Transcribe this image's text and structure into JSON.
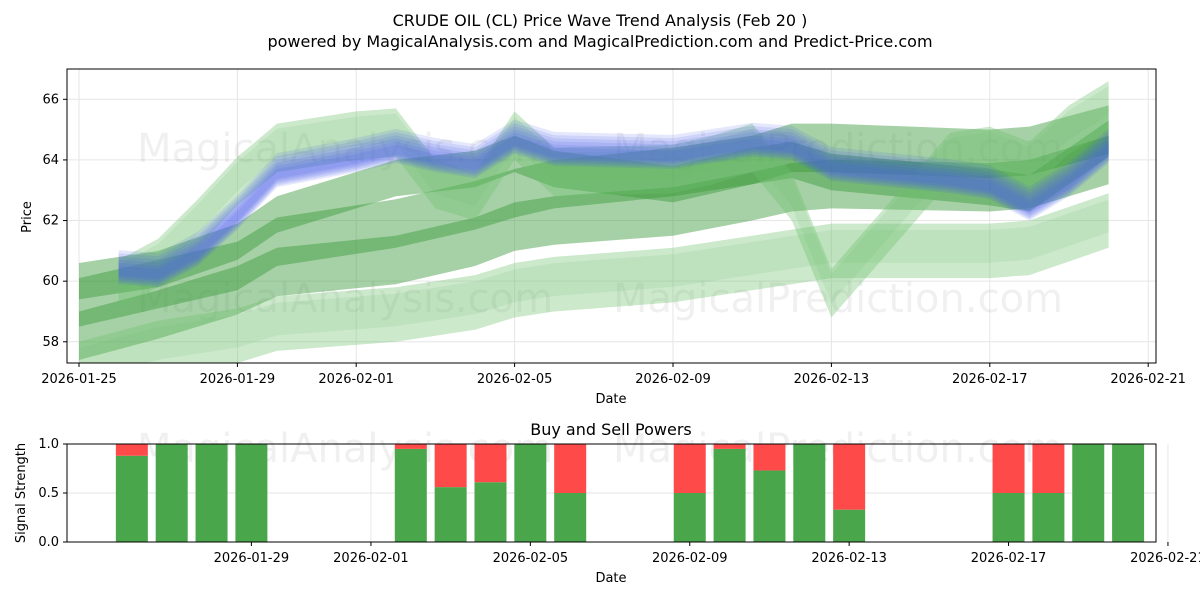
{
  "title_line1": "CRUDE OIL (CL) Price Wave Trend Analysis (Feb 20 )",
  "title_line2": "powered by MagicalAnalysis.com and MagicalPrediction.com and Predict-Price.com",
  "watermarks": [
    "MagicalAnalysis.com",
    "MagicalPrediction.com"
  ],
  "colors": {
    "blue_band": "#4a5ae8",
    "green_band": "#3a9a3a",
    "light_green_band": "#6cbf6c",
    "buy_bar": "#4aa64a",
    "sell_bar": "#ff4a4a"
  },
  "chart_data": [
    {
      "type": "area",
      "name": "price-wave-chart",
      "title": "",
      "xlabel": "Date",
      "ylabel": "Price",
      "x_range": [
        "2026-01-25",
        "2026-02-21"
      ],
      "ylim": [
        57.3,
        67.0
      ],
      "x_ticks": [
        "2026-01-25",
        "2026-01-29",
        "2026-02-01",
        "2026-02-05",
        "2026-02-09",
        "2026-02-13",
        "2026-02-17",
        "2026-02-21"
      ],
      "y_ticks": [
        58,
        60,
        62,
        64,
        66
      ],
      "grid": true,
      "series": [
        {
          "name": "blue-wave",
          "color": "blue",
          "width": 0.6,
          "copies": 6,
          "x": [
            "2026-01-26",
            "2026-01-27",
            "2026-01-28",
            "2026-01-29",
            "2026-01-30",
            "2026-02-01",
            "2026-02-02",
            "2026-02-03",
            "2026-02-04",
            "2026-02-05",
            "2026-02-06",
            "2026-02-09",
            "2026-02-10",
            "2026-02-11",
            "2026-02-12",
            "2026-02-13",
            "2026-02-16",
            "2026-02-17",
            "2026-02-18",
            "2026-02-19",
            "2026-02-20"
          ],
          "y": [
            60.4,
            60.3,
            61.0,
            62.2,
            63.6,
            64.1,
            64.4,
            64.1,
            63.9,
            64.7,
            64.3,
            64.2,
            64.4,
            64.6,
            64.5,
            63.8,
            63.4,
            63.2,
            62.5,
            63.3,
            64.4
          ]
        },
        {
          "name": "green-wave-upper",
          "color": "green",
          "width": 1.2,
          "x": [
            "2026-01-25",
            "2026-01-27",
            "2026-01-29",
            "2026-01-30",
            "2026-02-02",
            "2026-02-04",
            "2026-02-05",
            "2026-02-06",
            "2026-02-09",
            "2026-02-11",
            "2026-02-12",
            "2026-02-13",
            "2026-02-17",
            "2026-02-18",
            "2026-02-20"
          ],
          "y": [
            60.0,
            60.4,
            61.3,
            62.2,
            63.4,
            63.7,
            64.2,
            63.7,
            63.2,
            63.8,
            64.0,
            63.6,
            63.1,
            62.9,
            64.7
          ]
        },
        {
          "name": "green-wave-mid",
          "color": "green",
          "width": 1.6,
          "x": [
            "2026-01-25",
            "2026-01-27",
            "2026-01-29",
            "2026-01-30",
            "2026-02-02",
            "2026-02-04",
            "2026-02-05",
            "2026-02-06",
            "2026-02-09",
            "2026-02-11",
            "2026-02-12",
            "2026-02-13",
            "2026-02-17",
            "2026-02-18",
            "2026-02-20"
          ],
          "y": [
            59.3,
            59.9,
            60.5,
            61.3,
            61.9,
            62.5,
            62.9,
            63.2,
            63.6,
            64.0,
            64.4,
            64.4,
            64.2,
            64.3,
            65.0
          ]
        },
        {
          "name": "green-wave-lower",
          "color": "green",
          "width": 1.6,
          "x": [
            "2026-01-25",
            "2026-01-27",
            "2026-01-29",
            "2026-01-30",
            "2026-02-02",
            "2026-02-04",
            "2026-02-05",
            "2026-02-06",
            "2026-02-09",
            "2026-02-11",
            "2026-02-12",
            "2026-02-13",
            "2026-02-17",
            "2026-02-18",
            "2026-02-20"
          ],
          "y": [
            58.2,
            58.9,
            59.7,
            60.3,
            60.7,
            61.3,
            61.8,
            62.0,
            62.3,
            62.8,
            63.1,
            63.2,
            63.1,
            63.2,
            64.0
          ]
        },
        {
          "name": "light-green-low",
          "color": "lightgreen",
          "width": 1.8,
          "x": [
            "2026-01-25",
            "2026-01-27",
            "2026-01-29",
            "2026-01-30",
            "2026-02-02",
            "2026-02-04",
            "2026-02-05",
            "2026-02-06",
            "2026-02-09",
            "2026-02-11",
            "2026-02-12",
            "2026-02-13",
            "2026-02-17",
            "2026-02-18",
            "2026-02-20"
          ],
          "y": [
            57.1,
            57.8,
            58.2,
            58.6,
            58.9,
            59.3,
            59.7,
            59.9,
            60.2,
            60.6,
            60.8,
            61.0,
            61.0,
            61.1,
            62.0
          ]
        },
        {
          "name": "light-green-wave",
          "color": "lightgreen",
          "width": 1.6,
          "x": [
            "2026-01-26",
            "2026-01-27",
            "2026-01-28",
            "2026-01-29",
            "2026-01-30",
            "2026-02-01",
            "2026-02-02",
            "2026-02-03",
            "2026-02-04",
            "2026-02-05",
            "2026-02-06",
            "2026-02-09",
            "2026-02-10",
            "2026-02-11",
            "2026-02-12",
            "2026-02-13",
            "2026-02-16",
            "2026-02-17",
            "2026-02-18",
            "2026-02-19",
            "2026-02-20"
          ],
          "y": [
            59.9,
            60.6,
            61.9,
            63.3,
            64.4,
            64.8,
            64.9,
            63.2,
            62.8,
            64.8,
            63.6,
            63.7,
            64.0,
            64.4,
            62.8,
            59.6,
            64.1,
            64.3,
            63.8,
            65.0,
            65.8
          ]
        }
      ]
    },
    {
      "type": "bar",
      "name": "buy-sell-powers",
      "title": "Buy and Sell Powers",
      "xlabel": "Date",
      "ylabel": "Signal Strength",
      "x_range": [
        "2026-01-25",
        "2026-02-21"
      ],
      "ylim": [
        0,
        1.0
      ],
      "x_ticks": [
        "2026-01-29",
        "2026-02-01",
        "2026-02-05",
        "2026-02-09",
        "2026-02-13",
        "2026-02-17",
        "2026-02-21"
      ],
      "y_ticks": [
        "0.0",
        "0.5",
        "1.0"
      ],
      "dates": [
        "2026-01-26",
        "2026-01-27",
        "2026-01-28",
        "2026-01-29",
        "2026-02-02",
        "2026-02-03",
        "2026-02-04",
        "2026-02-05",
        "2026-02-06",
        "2026-02-09",
        "2026-02-10",
        "2026-02-11",
        "2026-02-12",
        "2026-02-13",
        "2026-02-17",
        "2026-02-18",
        "2026-02-19",
        "2026-02-20"
      ],
      "series": [
        {
          "name": "Buy",
          "values": [
            0.88,
            1.0,
            1.0,
            1.0,
            0.95,
            0.56,
            0.61,
            1.0,
            0.5,
            0.5,
            0.95,
            0.73,
            1.0,
            0.33,
            0.5,
            0.5,
            1.0,
            1.0
          ]
        },
        {
          "name": "Sell",
          "values": [
            0.12,
            0.0,
            0.0,
            0.0,
            0.05,
            0.44,
            0.39,
            0.0,
            0.5,
            0.5,
            0.05,
            0.27,
            0.0,
            0.67,
            0.5,
            0.5,
            0.0,
            0.0
          ]
        }
      ]
    }
  ]
}
